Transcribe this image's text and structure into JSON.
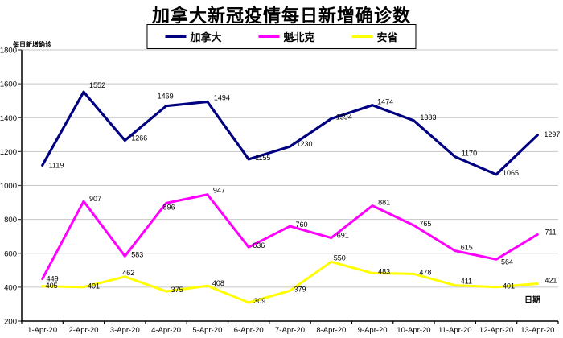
{
  "chart_data": {
    "type": "line",
    "title": "加拿大新冠疫情每日新增确诊数",
    "ylabel": "每日新增确诊",
    "xlabel": "日期",
    "categories": [
      "1-Apr-20",
      "2-Apr-20",
      "3-Apr-20",
      "4-Apr-20",
      "5-Apr-20",
      "6-Apr-20",
      "7-Apr-20",
      "8-Apr-20",
      "9-Apr-20",
      "10-Apr-20",
      "11-Apr-20",
      "12-Apr-20",
      "13-Apr-20"
    ],
    "series": [
      {
        "key": "canada",
        "name": "加拿大",
        "color": "#000080",
        "values": [
          1119,
          1552,
          1266,
          1469,
          1494,
          1155,
          1230,
          1394,
          1474,
          1383,
          1170,
          1065,
          1297
        ],
        "label_offsets": [
          [
            8,
            0
          ],
          [
            7,
            -8
          ],
          [
            8,
            -3
          ],
          [
            -11,
            -12
          ],
          [
            8,
            -5
          ],
          [
            8,
            -2
          ],
          [
            8,
            -3
          ],
          [
            6,
            -2
          ],
          [
            6,
            -4
          ],
          [
            8,
            -4
          ],
          [
            8,
            -4
          ],
          [
            8,
            -2
          ],
          [
            8,
            -1
          ]
        ]
      },
      {
        "key": "quebec",
        "name": "魁北克",
        "color": "#FF00FF",
        "values": [
          449,
          907,
          583,
          896,
          947,
          636,
          760,
          691,
          881,
          765,
          615,
          564,
          711
        ],
        "label_offsets": [
          [
            5,
            0
          ],
          [
            7,
            -3
          ],
          [
            8,
            -2
          ],
          [
            -4,
            5
          ],
          [
            7,
            -5
          ],
          [
            5,
            -2
          ],
          [
            7,
            -2
          ],
          [
            7,
            -3
          ],
          [
            7,
            -4
          ],
          [
            7,
            -2
          ],
          [
            7,
            -4
          ],
          [
            6,
            3
          ],
          [
            9,
            -3
          ]
        ]
      },
      {
        "key": "ontario",
        "name": "安省",
        "color": "#FFFF00",
        "values": [
          405,
          401,
          462,
          375,
          408,
          309,
          379,
          550,
          483,
          478,
          411,
          401,
          421
        ],
        "label_offsets": [
          [
            4,
            -1
          ],
          [
            5,
            -1
          ],
          [
            -3,
            -5
          ],
          [
            6,
            -2
          ],
          [
            6,
            -3
          ],
          [
            6,
            -2
          ],
          [
            5,
            -2
          ],
          [
            3,
            -5
          ],
          [
            7,
            -2
          ],
          [
            7,
            -2
          ],
          [
            7,
            -5
          ],
          [
            8,
            -1
          ],
          [
            9,
            -4
          ]
        ]
      }
    ],
    "ylim": [
      200,
      1800
    ],
    "ytick_step": 200,
    "grid": true,
    "legend_position": "top",
    "grid_color": "#c6c6c6",
    "axis_color": "#3f3f3f"
  }
}
